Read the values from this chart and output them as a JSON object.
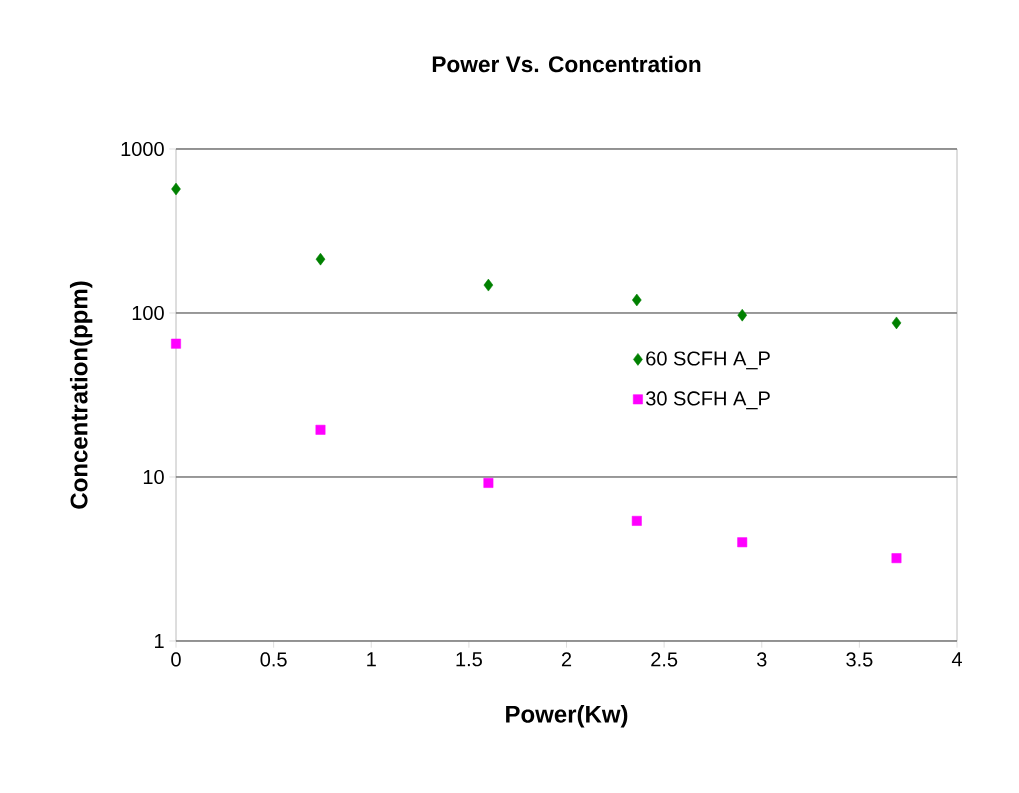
{
  "chart_data": {
    "type": "scatter",
    "title": "Power Vs. Concentration",
    "xlabel": "Power(Kw)",
    "ylabel": "Concentration(ppm)",
    "x": [
      0,
      0.74,
      1.6,
      2.36,
      2.9,
      3.69
    ],
    "series": [
      {
        "name": "60 SCFH A_P",
        "color": "#008000",
        "marker": "diamond",
        "values": [
          570,
          213,
          148,
          120,
          97,
          87
        ]
      },
      {
        "name": "30 SCFH A_P",
        "color": "#ff00ff",
        "marker": "square",
        "values": [
          65,
          19.4,
          9.2,
          5.4,
          4.0,
          3.2
        ]
      }
    ],
    "xlim": [
      0,
      4
    ],
    "xticks": [
      0,
      0.5,
      1,
      1.5,
      2,
      2.5,
      3,
      3.5,
      4
    ],
    "ylim": [
      1,
      1000
    ],
    "yticks": [
      1,
      10,
      100,
      1000
    ],
    "log": "y",
    "grid": "y",
    "legend": "right"
  }
}
